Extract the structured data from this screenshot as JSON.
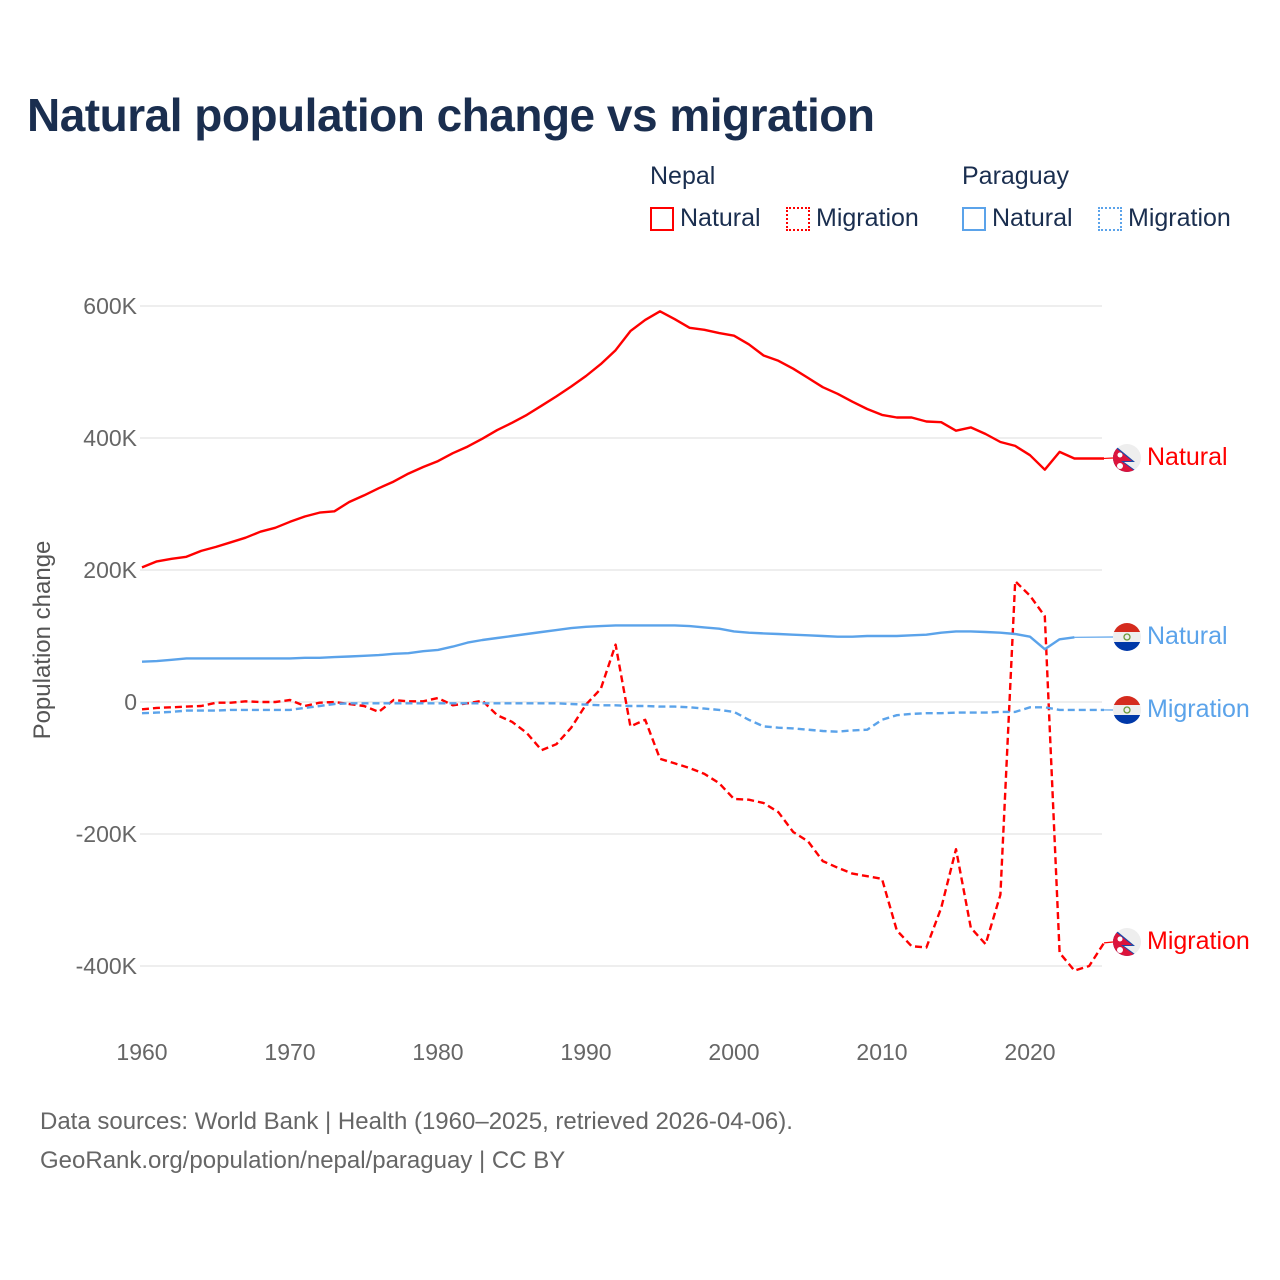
{
  "title": "Natural population change vs migration",
  "legend": {
    "groups": [
      {
        "name": "Nepal",
        "items": [
          {
            "label": "Natural",
            "style": "solid"
          },
          {
            "label": "Migration",
            "style": "dotted"
          }
        ],
        "color": "#ff0000"
      },
      {
        "name": "Paraguay",
        "items": [
          {
            "label": "Natural",
            "style": "solid"
          },
          {
            "label": "Migration",
            "style": "dotted"
          }
        ],
        "color": "#5ba3ea"
      }
    ]
  },
  "footer": {
    "line1": "Data sources: World Bank | Health (1960–2025, retrieved 2026-04-06).",
    "line2": "GeoRank.org/population/nepal/paraguay | CC BY"
  },
  "chart_data": {
    "type": "line",
    "title": "Natural population change vs migration",
    "xlabel": "",
    "ylabel": "Population change",
    "xlim": [
      1960,
      2025
    ],
    "ylim": [
      -500000,
      650000
    ],
    "x_ticks": [
      "1960",
      "1970",
      "1980",
      "1990",
      "2000",
      "2010",
      "2020"
    ],
    "y_ticks": [
      {
        "value": 600000,
        "label": "600K"
      },
      {
        "value": 400000,
        "label": "400K"
      },
      {
        "value": 200000,
        "label": "200K"
      },
      {
        "value": 0,
        "label": "0"
      },
      {
        "value": -200000,
        "label": "-200K"
      },
      {
        "value": -400000,
        "label": "-400K"
      }
    ],
    "grid": true,
    "legend_placement": "top-right",
    "x_start": 1960,
    "units": "thousands",
    "series": [
      {
        "name": "Nepal Natural",
        "country": "Nepal",
        "end_label": "Natural",
        "color": "#ff0000",
        "dash": "solid",
        "values": [
          204,
          213,
          217,
          220,
          229,
          235,
          242,
          249,
          258,
          264,
          273,
          281,
          287,
          289,
          303,
          313,
          324,
          334,
          346,
          356,
          365,
          377,
          387,
          399,
          412,
          423,
          435,
          449,
          463,
          478,
          494,
          512,
          533,
          562,
          579,
          592,
          580,
          567,
          564,
          559,
          555,
          542,
          525,
          517,
          505,
          491,
          477,
          467,
          455,
          444,
          435,
          431,
          431,
          425,
          424,
          411,
          416,
          406,
          394,
          388,
          374,
          352,
          379,
          369,
          369,
          369
        ]
      },
      {
        "name": "Nepal Migration",
        "country": "Nepal",
        "end_label": "Migration",
        "color": "#ff0000",
        "dash": "dashed",
        "values": [
          -11,
          -9,
          -8,
          -7,
          -6,
          -1,
          -1,
          1,
          0,
          0,
          3,
          -6,
          -1,
          0,
          -3,
          -6,
          -15,
          3,
          1,
          1,
          6,
          -5,
          -2,
          2,
          -20,
          -30,
          -47,
          -73,
          -64,
          -39,
          -4,
          20,
          87,
          -37,
          -27,
          -86,
          -93,
          -100,
          -109,
          -123,
          -147,
          -148,
          -153,
          -167,
          -197,
          -211,
          -241,
          -251,
          -260,
          -264,
          -268,
          -346,
          -370,
          -372,
          -312,
          -223,
          -342,
          -367,
          -292,
          183,
          161,
          130,
          -380,
          -407,
          -400,
          -365
        ]
      },
      {
        "name": "Paraguay Natural",
        "country": "Paraguay",
        "end_label": "Natural",
        "color": "#5ba3ea",
        "dash": "solid",
        "values": [
          61,
          62,
          64,
          66,
          66,
          66,
          66,
          66,
          66,
          66,
          66,
          67,
          67,
          68,
          69,
          70,
          71,
          73,
          74,
          77,
          79,
          84,
          90,
          94,
          97,
          100,
          103,
          106,
          109,
          112,
          114,
          115,
          116,
          116,
          116,
          116,
          116,
          115,
          113,
          111,
          107,
          105,
          104,
          103,
          102,
          101,
          100,
          99,
          99,
          100,
          100,
          100,
          101,
          102,
          105,
          107,
          107,
          106,
          105,
          103,
          99,
          80,
          95,
          98
        ]
      },
      {
        "name": "Paraguay Migration",
        "country": "Paraguay",
        "end_label": "Migration",
        "color": "#5ba3ea",
        "dash": "dashed",
        "values": [
          -17,
          -16,
          -15,
          -13,
          -13,
          -13,
          -12,
          -12,
          -12,
          -12,
          -12,
          -9,
          -6,
          -3,
          -2,
          -2,
          -2,
          -2,
          -2,
          -2,
          -2,
          -2,
          -2,
          -2,
          -2,
          -2,
          -2,
          -2,
          -2,
          -3,
          -4,
          -5,
          -5,
          -6,
          -6,
          -7,
          -7,
          -8,
          -10,
          -12,
          -15,
          -27,
          -37,
          -39,
          -40,
          -42,
          -44,
          -45,
          -43,
          -42,
          -27,
          -20,
          -18,
          -17,
          -17,
          -16,
          -16,
          -16,
          -15,
          -15,
          -8,
          -8,
          -12,
          -12,
          -12,
          -12
        ]
      }
    ]
  }
}
